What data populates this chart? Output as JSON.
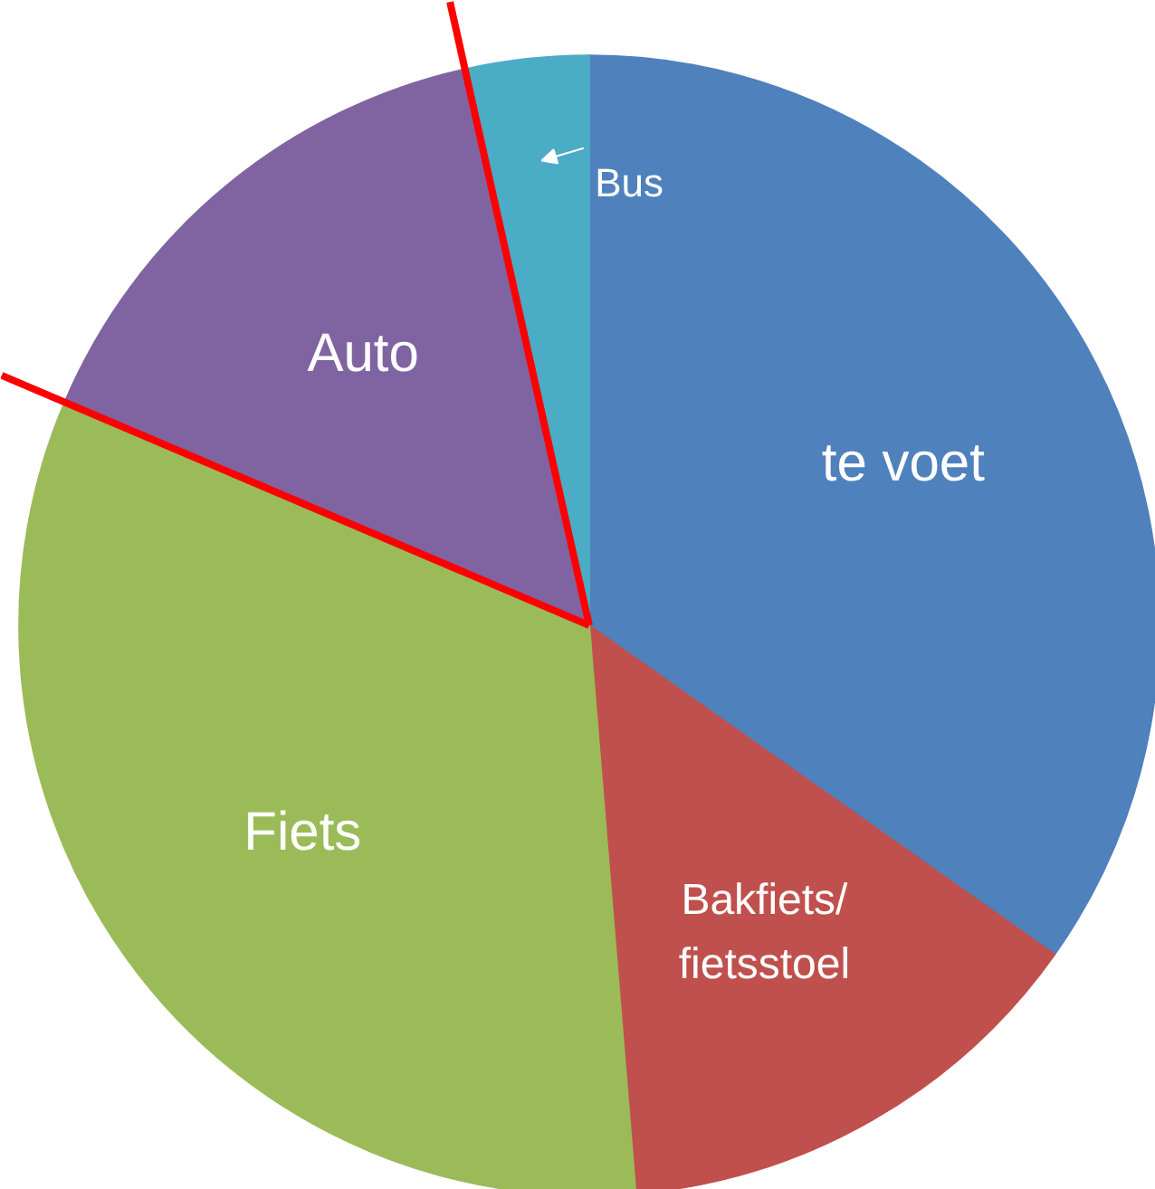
{
  "chart_data": {
    "type": "pie",
    "categories": [
      "te voet",
      "Bakfiets/fietsstoel",
      "Fiets",
      "Auto",
      "Bus"
    ],
    "values": [
      34.8,
      13.9,
      32.7,
      15.1,
      3.5
    ],
    "colors": [
      "#4f81bd",
      "#c0504d",
      "#9bbb59",
      "#8064a2",
      "#4bacc6"
    ]
  }
}
